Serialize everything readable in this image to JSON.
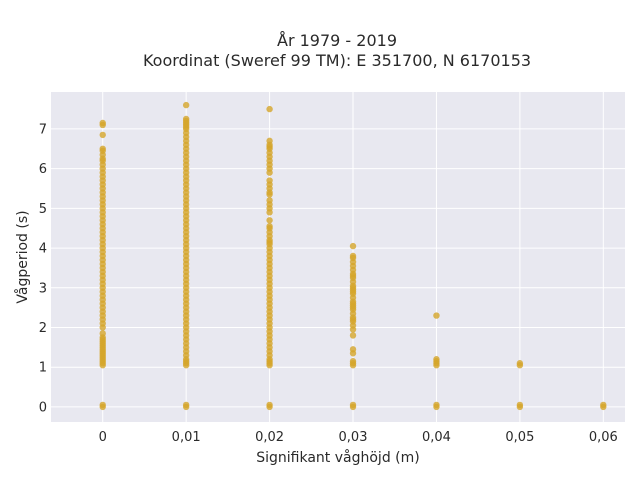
{
  "chart_data": {
    "type": "scatter",
    "title": [
      "År 1979 - 2019",
      "Koordinat (Sweref 99 TM): E 351700, N 6170153"
    ],
    "xlabel": "Signifikant våghöjd (m)",
    "ylabel": "Vågperiod (s)",
    "xlim": [
      -0.0062,
      0.0626
    ],
    "ylim": [
      -0.38,
      7.93
    ],
    "x_ticks": [
      0,
      0.01,
      0.02,
      0.03,
      0.04,
      0.05,
      0.06
    ],
    "x_tick_labels": [
      "0",
      "0,01",
      "0,02",
      "0,03",
      "0,04",
      "0,05",
      "0,06"
    ],
    "y_ticks": [
      0,
      1,
      2,
      3,
      4,
      5,
      6,
      7
    ],
    "y_tick_labels": [
      "0",
      "1",
      "2",
      "3",
      "4",
      "5",
      "6",
      "7"
    ],
    "grid": true,
    "colors": {
      "background": "#e8e8f0",
      "grid": "#ffffff",
      "marker": "#d4a52a"
    },
    "series": [
      {
        "x": [
          0,
          0,
          0,
          0,
          0,
          0,
          0,
          0,
          0,
          0,
          0,
          0,
          0,
          0,
          0,
          0,
          0,
          0,
          0,
          0,
          0,
          0,
          0,
          0,
          0,
          0,
          0,
          0,
          0,
          0,
          0,
          0,
          0,
          0,
          0,
          0,
          0,
          0,
          0,
          0,
          0,
          0,
          0,
          0,
          0,
          0,
          0,
          0,
          0,
          0,
          0,
          0,
          0,
          0,
          0,
          0,
          0,
          0,
          0,
          0,
          0,
          0,
          0,
          0,
          0,
          0,
          0,
          0,
          0.01,
          0.01,
          0.01,
          0.01,
          0.01,
          0.01,
          0.01,
          0.01,
          0.01,
          0.01,
          0.01,
          0.01,
          0.01,
          0.01,
          0.01,
          0.01,
          0.01,
          0.01,
          0.01,
          0.01,
          0.01,
          0.01,
          0.01,
          0.01,
          0.01,
          0.01,
          0.01,
          0.01,
          0.01,
          0.01,
          0.01,
          0.01,
          0.01,
          0.01,
          0.01,
          0.01,
          0.01,
          0.01,
          0.01,
          0.01,
          0.01,
          0.01,
          0.01,
          0.01,
          0.01,
          0.01,
          0.01,
          0.01,
          0.01,
          0.01,
          0.01,
          0.01,
          0.01,
          0.01,
          0.01,
          0.01,
          0.01,
          0.01,
          0.01,
          0.01,
          0.01,
          0.01,
          0.01,
          0.01,
          0.01,
          0.01,
          0.01,
          0.01,
          0.01,
          0.01,
          0.02,
          0.02,
          0.02,
          0.02,
          0.02,
          0.02,
          0.02,
          0.02,
          0.02,
          0.02,
          0.02,
          0.02,
          0.02,
          0.02,
          0.02,
          0.02,
          0.02,
          0.02,
          0.02,
          0.02,
          0.02,
          0.02,
          0.02,
          0.02,
          0.02,
          0.02,
          0.02,
          0.02,
          0.02,
          0.02,
          0.02,
          0.02,
          0.02,
          0.02,
          0.02,
          0.02,
          0.02,
          0.02,
          0.02,
          0.02,
          0.02,
          0.02,
          0.02,
          0.02,
          0.02,
          0.02,
          0.02,
          0.02,
          0.02,
          0.02,
          0.02,
          0.02,
          0.02,
          0.02,
          0.02,
          0.02,
          0.02,
          0.02,
          0.02,
          0.02,
          0.02,
          0.02,
          0.03,
          0.03,
          0.03,
          0.03,
          0.03,
          0.03,
          0.03,
          0.03,
          0.03,
          0.03,
          0.03,
          0.03,
          0.03,
          0.03,
          0.03,
          0.03,
          0.03,
          0.03,
          0.03,
          0.03,
          0.03,
          0.03,
          0.03,
          0.03,
          0.03,
          0.03,
          0.03,
          0.03,
          0.03,
          0.03,
          0.03,
          0.03,
          0.03,
          0.03,
          0.03,
          0.04,
          0.04,
          0.04,
          0.04,
          0.04,
          0.04,
          0.04,
          0.05,
          0.05,
          0.05,
          0.05,
          0.06,
          0.06
        ],
        "y": [
          0,
          0.05,
          1.05,
          1.1,
          1.15,
          1.2,
          1.25,
          1.3,
          1.35,
          1.4,
          1.45,
          1.5,
          1.55,
          1.6,
          1.65,
          1.7,
          1.75,
          1.85,
          2.0,
          2.1,
          2.2,
          2.3,
          2.4,
          2.5,
          2.6,
          2.7,
          2.8,
          2.9,
          3.0,
          3.1,
          3.2,
          3.3,
          3.4,
          3.5,
          3.6,
          3.7,
          3.8,
          3.9,
          4.0,
          4.1,
          4.2,
          4.3,
          4.4,
          4.5,
          4.6,
          4.7,
          4.8,
          4.9,
          5.0,
          5.1,
          5.2,
          5.3,
          5.4,
          5.5,
          5.6,
          5.7,
          5.8,
          5.9,
          6.0,
          6.1,
          6.25,
          6.35,
          6.45,
          6.5,
          6.85,
          7.1,
          7.15,
          6.2,
          0,
          0.05,
          1.05,
          1.1,
          1.15,
          1.2,
          1.3,
          1.4,
          1.5,
          1.6,
          1.7,
          1.8,
          1.9,
          2.0,
          2.1,
          2.2,
          2.3,
          2.4,
          2.5,
          2.6,
          2.7,
          2.8,
          2.9,
          3.0,
          3.1,
          3.2,
          3.3,
          3.4,
          3.5,
          3.6,
          3.7,
          3.8,
          3.9,
          4.0,
          4.1,
          4.2,
          4.3,
          4.4,
          4.5,
          4.6,
          4.7,
          4.8,
          4.9,
          5.0,
          5.1,
          5.2,
          5.3,
          5.4,
          5.5,
          5.6,
          5.7,
          5.8,
          5.9,
          6.0,
          6.1,
          6.2,
          6.3,
          6.4,
          6.5,
          6.6,
          6.7,
          6.8,
          6.9,
          7.0,
          7.05,
          7.1,
          7.15,
          7.2,
          7.25,
          7.6,
          0,
          0.05,
          1.05,
          1.1,
          1.15,
          1.2,
          1.3,
          1.4,
          1.5,
          1.6,
          1.7,
          1.8,
          1.9,
          2.0,
          2.1,
          2.2,
          2.3,
          2.4,
          2.5,
          2.6,
          2.7,
          2.8,
          2.9,
          3.0,
          3.1,
          3.2,
          3.3,
          3.4,
          3.5,
          3.6,
          3.7,
          3.8,
          3.9,
          4.0,
          4.1,
          4.2,
          4.3,
          4.4,
          4.5,
          4.7,
          4.9,
          5.0,
          5.1,
          5.2,
          5.4,
          5.5,
          5.6,
          5.7,
          5.9,
          6.0,
          6.1,
          6.2,
          6.3,
          6.4,
          6.5,
          6.55,
          6.6,
          6.7,
          7.5,
          4.55,
          4.15,
          5.35,
          0,
          0.05,
          1.05,
          1.1,
          1.15,
          1.35,
          1.45,
          1.8,
          1.95,
          2.05,
          2.15,
          2.25,
          2.35,
          2.45,
          2.55,
          2.65,
          2.75,
          2.85,
          2.95,
          3.05,
          3.15,
          3.25,
          3.35,
          3.45,
          3.55,
          3.65,
          3.75,
          3.8,
          4.05,
          2.5,
          2.9,
          3.3,
          2.2,
          2.6,
          3.0,
          0,
          0.05,
          1.05,
          1.1,
          1.15,
          1.2,
          2.3,
          0,
          0.05,
          1.05,
          1.1,
          0,
          0.05
        ]
      }
    ]
  }
}
